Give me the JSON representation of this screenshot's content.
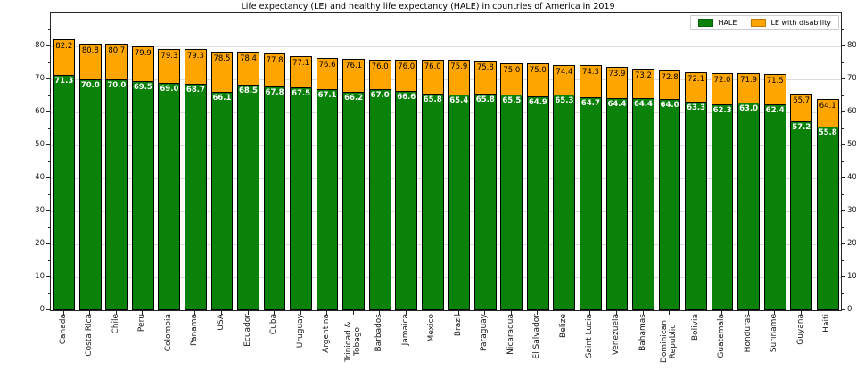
{
  "title": "Life expectancy (LE) and healthy life expectancy (HALE) in countries of America in 2019",
  "legend": {
    "items": [
      {
        "label": "HALE",
        "color": "#0a820a"
      },
      {
        "label": "LE with disability",
        "color": "#ffa500"
      }
    ],
    "position": "upper right"
  },
  "colors": {
    "hale_green": "#0a820a",
    "le_orange": "#ffa500",
    "bar_edge": "#000000",
    "frame": "#262626",
    "grid": "#dbdbdb",
    "background": "#ffffff",
    "hale_label_text": "#ffffff",
    "le_label_text": "#000000"
  },
  "chart_data": {
    "type": "bar",
    "stacked": true,
    "title": "Life expectancy (LE) and healthy life expectancy (HALE) in countries of America in 2019",
    "xlabel": "",
    "ylabel": "",
    "ylim": [
      0,
      90
    ],
    "yticks": [
      0,
      10,
      20,
      30,
      40,
      50,
      60,
      70,
      80
    ],
    "minor_tick_step": 5,
    "grid": true,
    "legend_position": "upper right",
    "bar_label_note": "green segment top label = HALE (white bold); bar top label = total LE (black)",
    "categories": [
      "Canada",
      "Costa Rica",
      "Chile",
      "Peru",
      "Colombia",
      "Panama",
      "USA",
      "Ecuador",
      "Cuba",
      "Uruguay",
      "Argentina",
      "Trinidad &\nTobago",
      "Barbados",
      "Jamaica",
      "Mexico",
      "Brazil",
      "Paraguay",
      "Nicaragua",
      "El Salvador",
      "Belize",
      "Saint Lucia",
      "Venezuela",
      "Bahamas",
      "Dominican\nRepublic",
      "Bolivia",
      "Guatemala",
      "Honduras",
      "Suriname",
      "Guyana",
      "Haiti"
    ],
    "series": [
      {
        "name": "HALE",
        "color": "#0a820a",
        "values": [
          71.3,
          70.0,
          70.0,
          69.5,
          69.0,
          68.7,
          66.1,
          68.5,
          67.8,
          67.5,
          67.1,
          66.2,
          67.0,
          66.6,
          65.8,
          65.4,
          65.8,
          65.5,
          64.9,
          65.3,
          64.7,
          64.4,
          64.4,
          64.0,
          63.3,
          62.3,
          63.0,
          62.4,
          57.2,
          55.8
        ]
      },
      {
        "name": "LE with disability",
        "color": "#ffa500",
        "values_are": "total LE shown as top label; orange segment height = LE minus HALE",
        "values": [
          82.2,
          80.8,
          80.7,
          79.9,
          79.3,
          79.3,
          78.5,
          78.4,
          77.8,
          77.1,
          76.6,
          76.1,
          76.0,
          76.0,
          76.0,
          75.9,
          75.8,
          75.0,
          75.0,
          74.4,
          74.3,
          73.9,
          73.2,
          72.8,
          72.1,
          72.0,
          71.9,
          71.5,
          65.7,
          64.1
        ]
      }
    ]
  }
}
